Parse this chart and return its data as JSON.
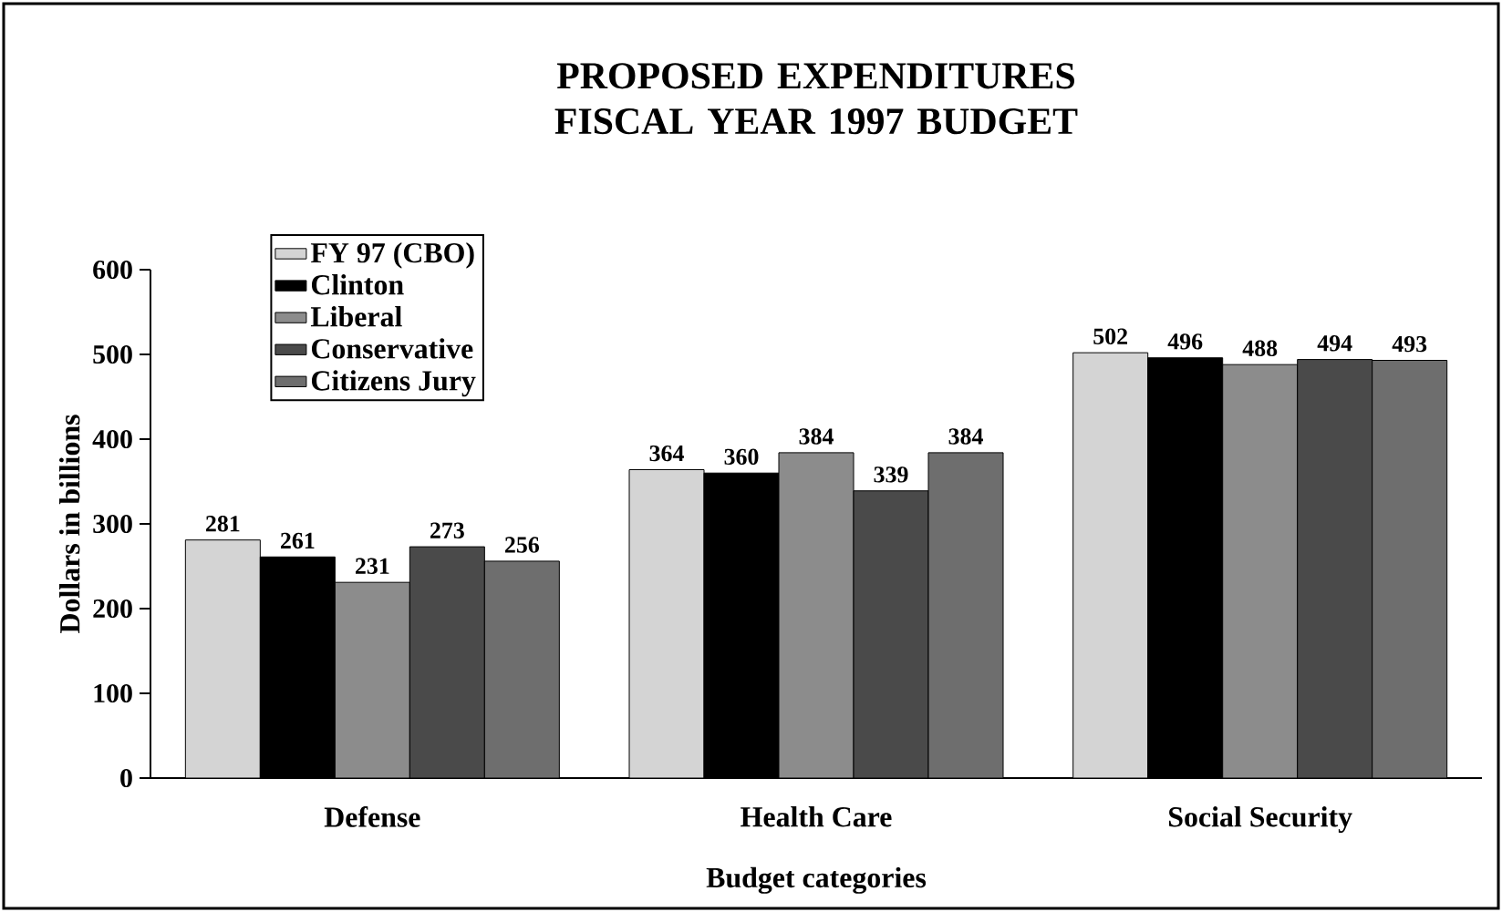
{
  "chart_data": {
    "type": "bar",
    "title": "PROPOSED EXPENDITURES FISCAL YEAR 1997 BUDGET",
    "xlabel": "Budget categories",
    "ylabel": "Dollars in billions",
    "categories": [
      "Defense",
      "Health Care",
      "Social Security"
    ],
    "series": [
      {
        "name": "FY 97 (CBO)",
        "color": "#d4d4d4",
        "values": [
          281,
          364,
          502
        ]
      },
      {
        "name": "Clinton",
        "color": "#000000",
        "values": [
          261,
          360,
          496
        ]
      },
      {
        "name": "Liberal",
        "color": "#8c8c8c",
        "values": [
          231,
          384,
          488
        ]
      },
      {
        "name": "Conservative",
        "color": "#4a4a4a",
        "values": [
          273,
          339,
          494
        ]
      },
      {
        "name": "Citizens Jury",
        "color": "#6e6e6e",
        "values": [
          256,
          384,
          493
        ]
      }
    ],
    "ylim": [
      0,
      600
    ],
    "yticks": [
      0,
      100,
      200,
      300,
      400,
      500,
      600
    ],
    "grid": false,
    "legend": "top left",
    "data_labels": true
  }
}
